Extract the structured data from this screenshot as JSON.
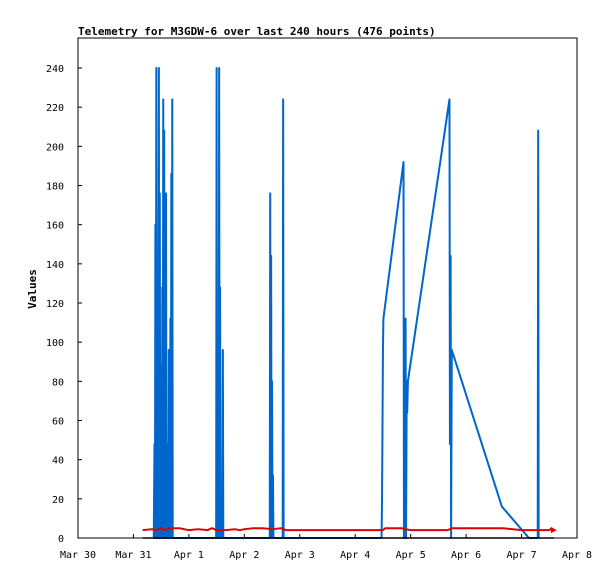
{
  "chart_data": {
    "type": "line",
    "title": "Telemetry for M3GDW-6 over last 240 hours (476 points)",
    "xlabel": "",
    "ylabel": "Values",
    "x_unit": "hours from Mar 30 00:00",
    "xlim": [
      0,
      216
    ],
    "ylim": [
      0,
      255
    ],
    "x_ticks": [
      {
        "label": "Mar 30",
        "value": 0
      },
      {
        "label": "Mar 31",
        "value": 24
      },
      {
        "label": "Apr 1",
        "value": 48
      },
      {
        "label": "Apr 2",
        "value": 72
      },
      {
        "label": "Apr 3",
        "value": 96
      },
      {
        "label": "Apr 4",
        "value": 120
      },
      {
        "label": "Apr 5",
        "value": 144
      },
      {
        "label": "Apr 6",
        "value": 168
      },
      {
        "label": "Apr 7",
        "value": 192
      },
      {
        "label": "Apr 8",
        "value": 216
      }
    ],
    "y_ticks": [
      0,
      20,
      40,
      60,
      80,
      100,
      120,
      140,
      160,
      180,
      200,
      220,
      240
    ],
    "grid": false,
    "legend": "none",
    "series": [
      {
        "color": "#0066cc",
        "points": [
          [
            32.8,
            0
          ],
          [
            33.1,
            48
          ],
          [
            33.3,
            0
          ],
          [
            33.5,
            160
          ],
          [
            33.7,
            0
          ],
          [
            33.9,
            240
          ],
          [
            34.1,
            0
          ],
          [
            34.7,
            0
          ],
          [
            35.0,
            240
          ],
          [
            35.2,
            0
          ],
          [
            35.4,
            176
          ],
          [
            35.6,
            0
          ],
          [
            35.8,
            88
          ],
          [
            36.0,
            0
          ],
          [
            36.3,
            0
          ],
          [
            36.5,
            128
          ],
          [
            36.7,
            0
          ],
          [
            36.9,
            224
          ],
          [
            37.1,
            0
          ],
          [
            37.3,
            208
          ],
          [
            37.5,
            0
          ],
          [
            37.7,
            176
          ],
          [
            37.9,
            0
          ],
          [
            38.1,
            176
          ],
          [
            38.3,
            0
          ],
          [
            38.5,
            40
          ],
          [
            38.7,
            0
          ],
          [
            38.9,
            48
          ],
          [
            39.1,
            0
          ],
          [
            39.3,
            96
          ],
          [
            39.5,
            0
          ],
          [
            39.8,
            0
          ],
          [
            40.0,
            112
          ],
          [
            40.2,
            0
          ],
          [
            40.4,
            186
          ],
          [
            40.6,
            0
          ],
          [
            40.8,
            224
          ],
          [
            41.0,
            0
          ],
          [
            59.8,
            0
          ],
          [
            60.0,
            240
          ],
          [
            60.2,
            0
          ],
          [
            60.9,
            0
          ],
          [
            61.1,
            240
          ],
          [
            61.3,
            0
          ],
          [
            61.5,
            128
          ],
          [
            61.7,
            0
          ],
          [
            62.5,
            0
          ],
          [
            62.7,
            96
          ],
          [
            62.9,
            0
          ],
          [
            83.0,
            0
          ],
          [
            83.2,
            176
          ],
          [
            83.4,
            0
          ],
          [
            83.6,
            144
          ],
          [
            83.8,
            0
          ],
          [
            84.0,
            80
          ],
          [
            84.2,
            0
          ],
          [
            84.4,
            32
          ],
          [
            84.6,
            0
          ],
          [
            88.6,
            0
          ],
          [
            88.8,
            224
          ],
          [
            89.0,
            0
          ],
          [
            131.4,
            0
          ],
          [
            131.6,
            20
          ],
          [
            131.8,
            56
          ],
          [
            132.0,
            96
          ],
          [
            132.2,
            112
          ],
          [
            140.9,
            192
          ],
          [
            141.1,
            0
          ],
          [
            141.4,
            48
          ],
          [
            141.6,
            0
          ],
          [
            141.8,
            112
          ],
          [
            142.0,
            0
          ],
          [
            142.3,
            80
          ],
          [
            142.5,
            64
          ],
          [
            142.8,
            80
          ],
          [
            160.8,
            224
          ],
          [
            161.0,
            48
          ],
          [
            161.3,
            144
          ],
          [
            161.5,
            0
          ],
          [
            161.8,
            96
          ],
          [
            183.5,
            16
          ],
          [
            195.2,
            0
          ],
          [
            199.0,
            0
          ],
          [
            199.2,
            208
          ],
          [
            199.4,
            0
          ]
        ]
      },
      {
        "color": "#dd0000",
        "points": [
          [
            28,
            4
          ],
          [
            32,
            4.5
          ],
          [
            34,
            4
          ],
          [
            36,
            5
          ],
          [
            37,
            4
          ],
          [
            40,
            5
          ],
          [
            44,
            5
          ],
          [
            48,
            4
          ],
          [
            52,
            4.5
          ],
          [
            56,
            4
          ],
          [
            58,
            5
          ],
          [
            60,
            4
          ],
          [
            64,
            4
          ],
          [
            68,
            4.5
          ],
          [
            70,
            4
          ],
          [
            72,
            4.5
          ],
          [
            76,
            5
          ],
          [
            80,
            5
          ],
          [
            84,
            4.5
          ],
          [
            88,
            5
          ],
          [
            90,
            4
          ],
          [
            96,
            4
          ],
          [
            120,
            4
          ],
          [
            132,
            4
          ],
          [
            133,
            5
          ],
          [
            140,
            5
          ],
          [
            144,
            4
          ],
          [
            160,
            4
          ],
          [
            162,
            5
          ],
          [
            184,
            5
          ],
          [
            192,
            4
          ],
          [
            204,
            4
          ],
          [
            205,
            5
          ],
          [
            206,
            4
          ]
        ]
      },
      {
        "color": "#000000",
        "points": [
          [
            28,
            0
          ],
          [
            206,
            0
          ]
        ]
      }
    ]
  }
}
